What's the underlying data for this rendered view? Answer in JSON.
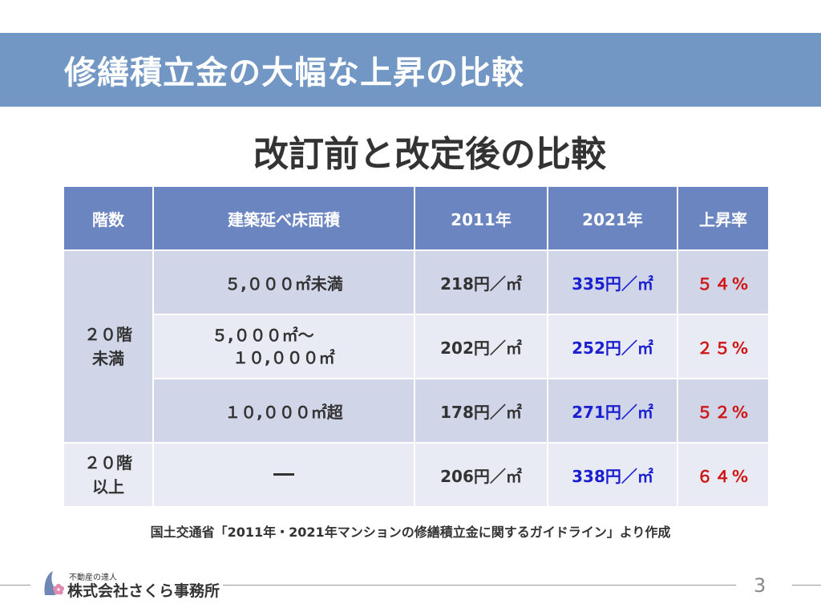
{
  "slide": {
    "title": "修繕積立金の大幅な上昇の比較",
    "subtitle": "改訂前と改定後の比較",
    "source": "国土交通省「2011年・2021年マンションの修繕積立金に関するガイドライン」より作成",
    "page_number": "3"
  },
  "company": {
    "tagline": "不動産の達人",
    "name": "株式会社さくら事務所"
  },
  "table": {
    "headers": [
      "階数",
      "建築延べ床面積",
      "2011年",
      "2021年",
      "上昇率"
    ],
    "groups": [
      {
        "level_line1": "２０階",
        "level_line2": "未満",
        "rows": [
          {
            "area": "５,０００㎡未満",
            "y2011": "218円／㎡",
            "y2021": "335円／㎡",
            "rate": "５４%"
          },
          {
            "area_line1": "５,０００㎡～",
            "area_line2": "１０,０００㎡",
            "y2011": "202円／㎡",
            "y2021": "252円／㎡",
            "rate": "２５%"
          },
          {
            "area": "１０,０００㎡超",
            "y2011": "178円／㎡",
            "y2021": "271円／㎡",
            "rate": "５２%"
          }
        ]
      },
      {
        "level_line1": "２０階",
        "level_line2": "以上",
        "rows": [
          {
            "area": "",
            "y2011": "206円／㎡",
            "y2021": "338円／㎡",
            "rate": "６４%"
          }
        ]
      }
    ]
  },
  "colors": {
    "title_band": "#7297c4",
    "header": "#6a85c0",
    "row_dark": "#d0d5e8",
    "row_light": "#e9ebf4",
    "value_2021": "#1a1fd0",
    "rate": "#d01616"
  }
}
